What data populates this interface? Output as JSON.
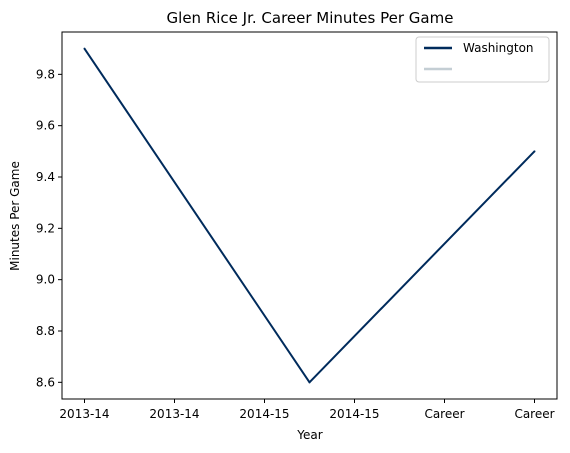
{
  "chart_data": {
    "type": "line",
    "title": "Glen Rice Jr. Career Minutes Per Game",
    "xlabel": "Year",
    "ylabel": "Minutes Per Game",
    "categories": [
      "2013-14",
      "2013-14",
      "2014-15",
      "2014-15",
      "Career",
      "Career"
    ],
    "series": [
      {
        "name": "Washington",
        "color": "#002B5C",
        "points": [
          {
            "x": 0,
            "y": 9.9
          },
          {
            "x": 2.5,
            "y": 8.6
          },
          {
            "x": 5,
            "y": 9.5
          }
        ]
      }
    ],
    "legend": {
      "placement": "top-right",
      "entries": [
        {
          "label": "Washington",
          "color": "#002B5C"
        },
        {
          "label": "",
          "color": "#C4CED4"
        }
      ]
    },
    "xlim": [
      -0.25,
      5.25
    ],
    "ylim": [
      8.535,
      9.965
    ],
    "yticks": [
      8.6,
      8.8,
      9.0,
      9.2,
      9.4,
      9.6,
      9.8
    ],
    "ytick_labels": [
      "8.6",
      "8.8",
      "9.0",
      "9.2",
      "9.4",
      "9.6",
      "9.8"
    ],
    "grid": false
  }
}
